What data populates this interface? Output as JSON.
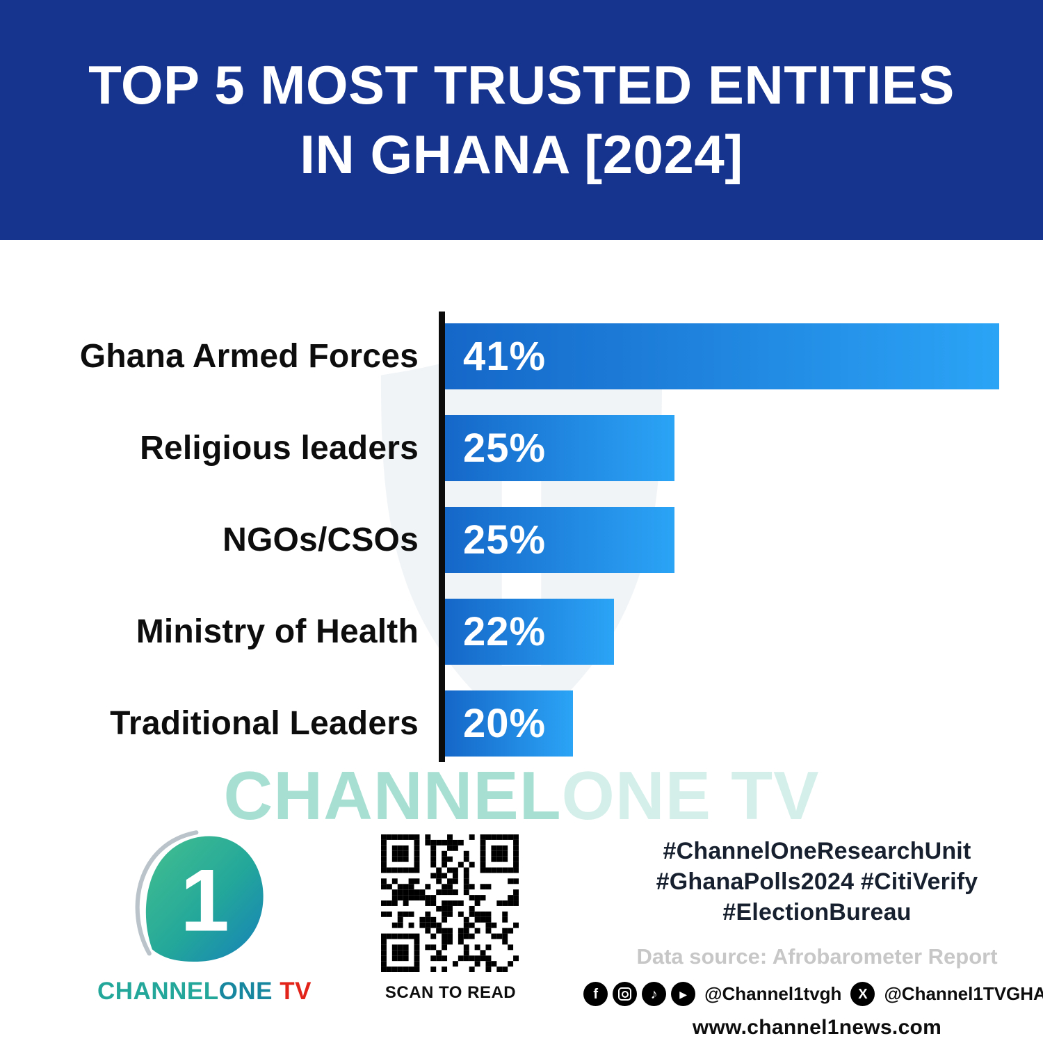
{
  "header": {
    "title_line1": "TOP 5 MOST TRUSTED ENTITIES",
    "title_line2": "IN GHANA [2024]"
  },
  "chart_data": {
    "type": "bar",
    "orientation": "horizontal",
    "title": "Top 5 Most Trusted Entities in Ghana [2024]",
    "categories": [
      "Ghana Armed Forces",
      "Religious leaders",
      "NGOs/CSOs",
      "Ministry of Health",
      "Traditional Leaders"
    ],
    "values": [
      41,
      25,
      25,
      22,
      20
    ],
    "value_labels": [
      "41%",
      "25%",
      "25%",
      "22%",
      "20%"
    ],
    "xlabel": "",
    "ylabel": "",
    "grid": false,
    "legend_position": "none",
    "bar_gradient": [
      "#1567C8",
      "#2BA4F6"
    ],
    "axis_color": "#0c0c0c",
    "bar_lengths_not_to_scale": true,
    "display_width_pct": [
      99,
      41,
      41,
      30.2,
      22.9
    ]
  },
  "watermark": {
    "part1": "CHANNEL",
    "part2": "ONE TV"
  },
  "footer": {
    "logo": {
      "numeral": "1",
      "wordmark_channel": "CHANNEL",
      "wordmark_one": "ONE",
      "wordmark_tv": " TV"
    },
    "qr_caption": "SCAN TO READ",
    "hashtags": [
      "#ChannelOneResearchUnit",
      "#GhanaPolls2024 #CitiVerify",
      "#ElectionBureau"
    ],
    "data_source": "Data source: Afrobarometer Report",
    "social": {
      "icons": [
        "facebook-icon",
        "instagram-icon",
        "tiktok-icon",
        "youtube-icon",
        "x-icon"
      ],
      "handle1": "@Channel1tvgh",
      "handle2": "@Channel1TVGHA"
    },
    "website": "www.channel1news.com"
  },
  "colors": {
    "banner": "#16338E",
    "bar_start": "#1567C8",
    "bar_end": "#2BA4F6",
    "teal": "#23A79A",
    "red": "#E2231A",
    "gray_text": "#C7C7C7"
  }
}
